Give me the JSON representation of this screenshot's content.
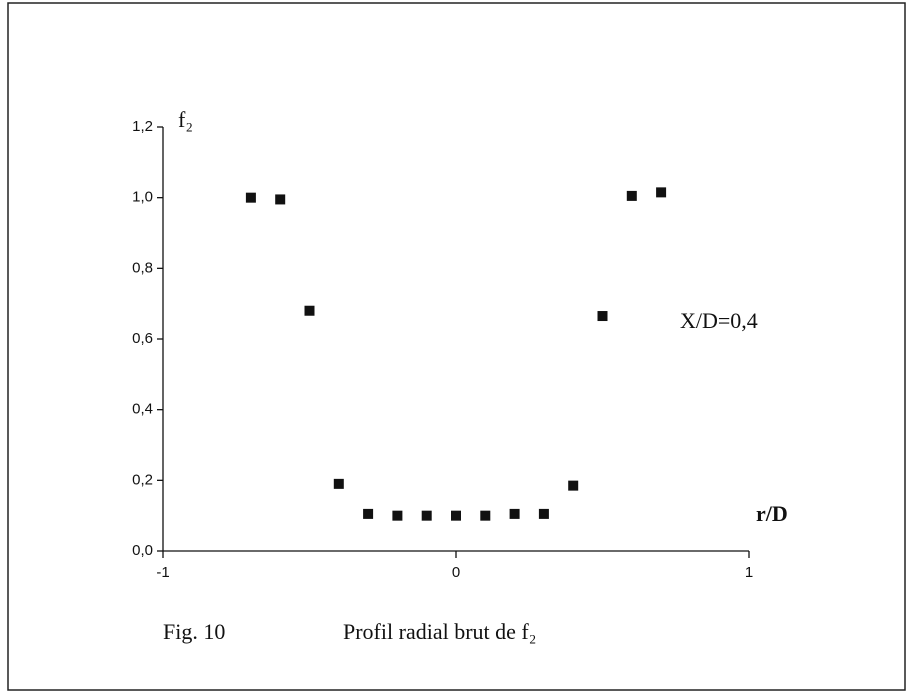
{
  "chart_data": {
    "type": "scatter",
    "caption": "Fig. 10",
    "title": "Profil radial brut de f₂",
    "ylabel": "f₂",
    "xlabel": "r/D",
    "annotation": "X/D=0,4",
    "color": "#111111",
    "x": [
      -0.7,
      -0.6,
      -0.5,
      -0.4,
      -0.3,
      -0.2,
      -0.1,
      0,
      0.1,
      0.2,
      0.3,
      0.4,
      0.5,
      0.6,
      0.7
    ],
    "values": [
      1.0,
      0.995,
      0.68,
      0.19,
      0.105,
      0.1,
      0.1,
      0.1,
      0.1,
      0.105,
      0.105,
      0.185,
      0.665,
      1.005,
      1.015
    ],
    "xlim": [
      -1,
      1
    ],
    "xticks": [
      -1,
      0,
      1
    ],
    "ylim": [
      0,
      1.2
    ],
    "yticks": [
      {
        "value": 0,
        "label": "0,0"
      },
      {
        "value": 0.2,
        "label": "0,2"
      },
      {
        "value": 0.4,
        "label": "0,4"
      },
      {
        "value": 0.6,
        "label": "0,6"
      },
      {
        "value": 0.8,
        "label": "0,8"
      },
      {
        "value": 1.0,
        "label": "1,0"
      },
      {
        "value": 1.2,
        "label": "1,2"
      }
    ],
    "grid": false
  }
}
